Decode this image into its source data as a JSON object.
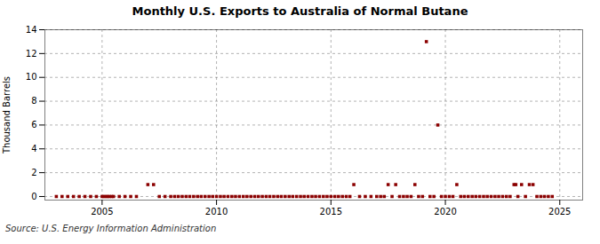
{
  "chart_data": {
    "type": "scatter",
    "title": "Monthly U.S. Exports to Australia of Normal Butane",
    "ylabel": "Thousand Barrels",
    "annotation": "Source: U.S. Energy Information Administration",
    "xlim": [
      2002.5,
      2026.0
    ],
    "ylim": [
      -0.3,
      14
    ],
    "xticks": [
      2005,
      2010,
      2015,
      2020,
      2025
    ],
    "yticks": [
      0,
      2,
      4,
      6,
      8,
      10,
      12,
      14
    ],
    "grid": true,
    "color": "#8b0000",
    "marker": "square",
    "x": [
      2003.0,
      2003.25,
      2003.5,
      2003.75,
      2004.0,
      2004.25,
      2004.5,
      2004.75,
      2005.0,
      2005.08,
      2005.17,
      2005.25,
      2005.33,
      2005.42,
      2005.5,
      2005.75,
      2006.0,
      2006.25,
      2006.5,
      2007.0,
      2007.25,
      2007.5,
      2007.75,
      2008.0,
      2008.17,
      2008.33,
      2008.5,
      2008.67,
      2008.83,
      2009.0,
      2009.17,
      2009.33,
      2009.5,
      2009.67,
      2009.83,
      2010.0,
      2010.17,
      2010.33,
      2010.5,
      2010.67,
      2010.83,
      2011.0,
      2011.17,
      2011.33,
      2011.5,
      2011.67,
      2011.83,
      2012.0,
      2012.17,
      2012.33,
      2012.5,
      2012.67,
      2012.83,
      2013.0,
      2013.17,
      2013.33,
      2013.5,
      2013.67,
      2013.83,
      2014.0,
      2014.17,
      2014.33,
      2014.5,
      2014.67,
      2014.83,
      2015.0,
      2015.17,
      2015.33,
      2015.5,
      2015.67,
      2015.83,
      2016.0,
      2016.25,
      2016.5,
      2016.75,
      2017.0,
      2017.17,
      2017.33,
      2017.5,
      2017.67,
      2017.83,
      2018.0,
      2018.17,
      2018.33,
      2018.5,
      2018.67,
      2018.83,
      2019.0,
      2019.17,
      2019.33,
      2019.5,
      2019.67,
      2019.83,
      2020.0,
      2020.17,
      2020.33,
      2020.5,
      2020.67,
      2020.83,
      2021.0,
      2021.17,
      2021.33,
      2021.5,
      2021.67,
      2021.83,
      2022.0,
      2022.17,
      2022.33,
      2022.5,
      2022.67,
      2022.83,
      2023.0,
      2023.08,
      2023.17,
      2023.33,
      2023.5,
      2023.67,
      2023.83,
      2024.0,
      2024.17,
      2024.33,
      2024.5,
      2024.67
    ],
    "values": [
      0,
      0,
      0,
      0,
      0,
      0,
      0,
      0,
      0,
      0,
      0,
      0,
      0,
      0,
      0,
      0,
      0,
      0,
      0,
      1,
      1,
      0,
      0,
      0,
      0,
      0,
      0,
      0,
      0,
      0,
      0,
      0,
      0,
      0,
      0,
      0,
      0,
      0,
      0,
      0,
      0,
      0,
      0,
      0,
      0,
      0,
      0,
      0,
      0,
      0,
      0,
      0,
      0,
      0,
      0,
      0,
      0,
      0,
      0,
      0,
      0,
      0,
      0,
      0,
      0,
      0,
      0,
      0,
      0,
      0,
      0,
      1,
      0,
      0,
      0,
      0,
      0,
      0,
      1,
      0,
      1,
      0,
      0,
      0,
      0,
      1,
      0,
      0,
      13,
      0,
      0,
      6,
      0,
      0,
      0,
      0,
      1,
      0,
      0,
      0,
      0,
      0,
      0,
      0,
      0,
      0,
      0,
      0,
      0,
      0,
      0,
      1,
      1,
      0,
      1,
      0,
      1,
      1,
      0,
      0,
      0,
      0,
      0
    ]
  }
}
